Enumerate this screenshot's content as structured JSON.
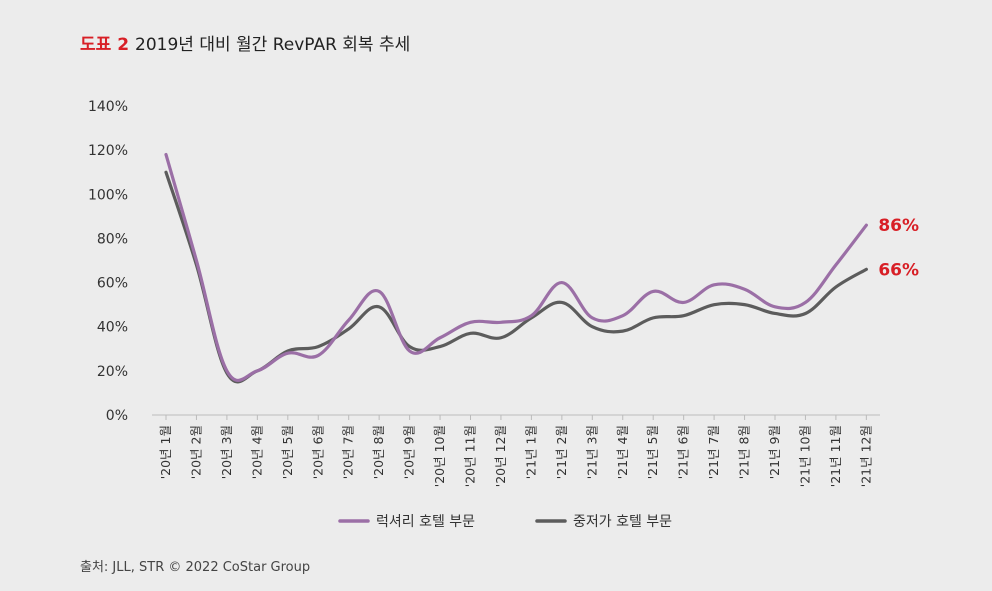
{
  "title": {
    "label": "도표 2",
    "text": "2019년 대비 월간 RevPAR 회복 추세"
  },
  "source": "출처: JLL, STR © 2022 CoStar Group",
  "colors": {
    "luxury": "#9b6fa6",
    "midscale": "#5c5c5c",
    "highlight": "#d81f26",
    "axis": "#bbbbbb"
  },
  "chart_data": {
    "type": "line",
    "categories": [
      "'20년 1월",
      "'20년 2월",
      "'20년 3월",
      "'20년 4월",
      "'20년 5월",
      "'20년 6월",
      "'20년 7월",
      "'20년 8월",
      "'20년 9월",
      "'20년 10월",
      "'20년 11월",
      "'20년 12월",
      "'21년 1월",
      "'21년 2월",
      "'21년 3월",
      "'21년 4월",
      "'21년 5월",
      "'21년 6월",
      "'21년 7월",
      "'21년 8월",
      "'21년 9월",
      "'21년 10월",
      "'21년 11월",
      "'21년 12월"
    ],
    "series": [
      {
        "name": "럭셔리 호텔 부문",
        "values": [
          118,
          70,
          20,
          20,
          28,
          27,
          43,
          56,
          29,
          35,
          42,
          42,
          45,
          60,
          44,
          45,
          56,
          51,
          59,
          57,
          49,
          51,
          68,
          86
        ]
      },
      {
        "name": "중저가 호텔 부문",
        "values": [
          110,
          68,
          19,
          20,
          29,
          31,
          39,
          49,
          31,
          31,
          37,
          35,
          44,
          51,
          40,
          38,
          44,
          45,
          50,
          50,
          46,
          46,
          58,
          66
        ]
      }
    ],
    "end_labels": [
      "86%",
      "66%"
    ],
    "yticks": [
      "0%",
      "20%",
      "40%",
      "60%",
      "80%",
      "100%",
      "120%",
      "140%"
    ],
    "ylim": [
      0,
      140
    ],
    "legend": "bottom"
  }
}
